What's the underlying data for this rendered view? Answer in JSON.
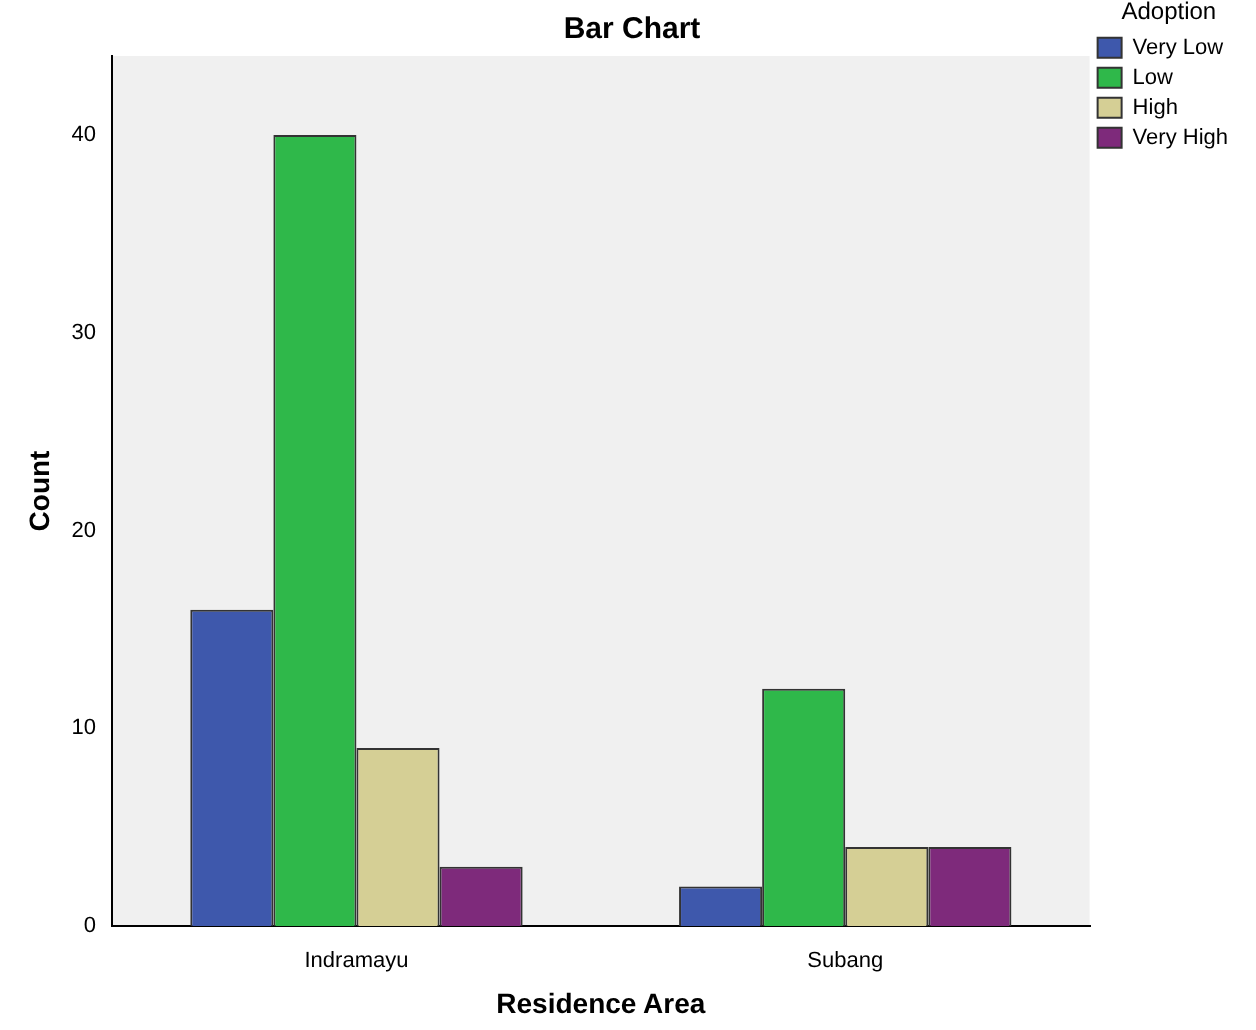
{
  "chart_data": {
    "type": "bar",
    "title": "Bar Chart",
    "xlabel": "Residence Area",
    "ylabel": "Count",
    "legend_title": "Adoption",
    "legend": "right",
    "categories": [
      "Indramayu",
      "Subang"
    ],
    "series": [
      {
        "name": "Very Low",
        "color": "#3e58ac",
        "values": [
          16,
          2
        ]
      },
      {
        "name": "Low",
        "color": "#2fb84a",
        "values": [
          40,
          12
        ]
      },
      {
        "name": "High",
        "color": "#d5cf95",
        "values": [
          9,
          4
        ]
      },
      {
        "name": "Very High",
        "color": "#7e2a7b",
        "values": [
          3,
          4
        ]
      }
    ],
    "ylim": [
      0,
      44
    ],
    "yticks": [
      0,
      10,
      20,
      30,
      40
    ],
    "grid": false
  }
}
